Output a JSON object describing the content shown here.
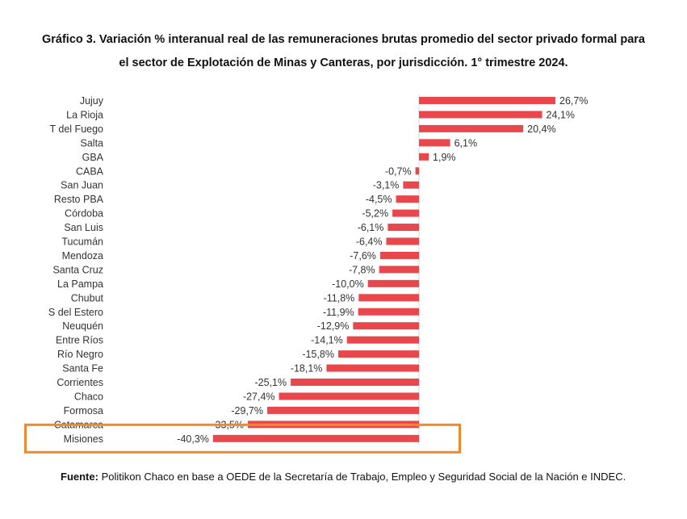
{
  "chart_data": {
    "type": "bar",
    "orientation": "horizontal",
    "title": "Gráfico 3. Variación % interanual real de las remuneraciones brutas promedio del sector privado formal para",
    "subtitle": "el sector de Explotación de Minas y Canteras, por jurisdicción. 1° trimestre 2024.",
    "categories": [
      "Jujuy",
      "La Rioja",
      "T del Fuego",
      "Salta",
      "GBA",
      "CABA",
      "San Juan",
      "Resto PBA",
      "Córdoba",
      "San Luis",
      "Tucumán",
      "Mendoza",
      "Santa Cruz",
      "La Pampa",
      "Chubut",
      "S del Estero",
      "Neuquén",
      "Entre Ríos",
      "Río Negro",
      "Santa Fe",
      "Corrientes",
      "Chaco",
      "Formosa",
      "Catamarca",
      "Misiones"
    ],
    "values": [
      26.7,
      24.1,
      20.4,
      6.1,
      1.9,
      -0.7,
      -3.1,
      -4.5,
      -5.2,
      -6.1,
      -6.4,
      -7.6,
      -7.8,
      -10.0,
      -11.8,
      -11.9,
      -12.9,
      -14.1,
      -15.8,
      -18.1,
      -25.1,
      -27.4,
      -29.7,
      -33.5,
      -40.3
    ],
    "value_labels": [
      "26,7%",
      "24,1%",
      "20,4%",
      "6,1%",
      "1,9%",
      "-0,7%",
      "-3,1%",
      "-4,5%",
      "-5,2%",
      "-6,1%",
      "-6,4%",
      "-7,6%",
      "-7,8%",
      "-10,0%",
      "-11,8%",
      "-11,9%",
      "-12,9%",
      "-14,1%",
      "-15,8%",
      "-18,1%",
      "-25,1%",
      "-27,4%",
      "-29,7%",
      "-33,5%",
      "-40,3%"
    ],
    "bar_color": "#e8474c",
    "highlight_category": "Misiones",
    "highlight_color": "#f0892e",
    "grid": false,
    "legend": "none"
  },
  "source": {
    "label": "Fuente:",
    "text": " Politikon Chaco en base a OEDE de la Secretaría de Trabajo, Empleo y Seguridad Social de la Nación e INDEC."
  }
}
